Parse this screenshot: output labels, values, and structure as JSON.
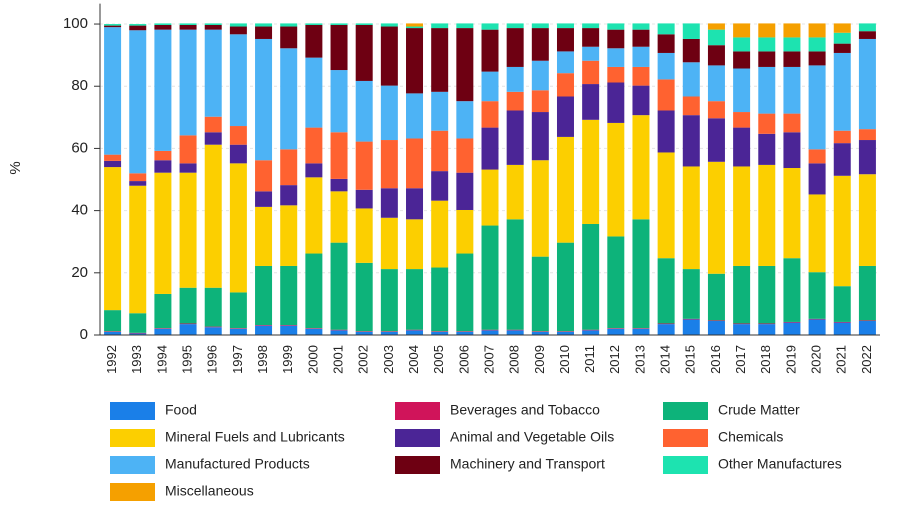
{
  "chart_data": {
    "type": "stacked_bar",
    "y_label": "%",
    "categories": [
      "1992",
      "1993",
      "1994",
      "1995",
      "1996",
      "1997",
      "1998",
      "1999",
      "2000",
      "2001",
      "2002",
      "2003",
      "2004",
      "2005",
      "2006",
      "2007",
      "2008",
      "2009",
      "2010",
      "2011",
      "2012",
      "2013",
      "2014",
      "2015",
      "2016",
      "2017",
      "2018",
      "2019",
      "2020",
      "2021",
      "2022"
    ],
    "ylim": [
      0,
      104
    ],
    "yticks": [
      0,
      20,
      40,
      60,
      80,
      100
    ],
    "grid": true,
    "series": [
      {
        "name": "Food",
        "color": "#1a7fe8",
        "values": [
          1,
          0.5,
          2,
          3.5,
          2.5,
          2,
          3,
          3,
          2,
          1.5,
          1,
          1,
          1.5,
          1,
          1,
          1.5,
          1.5,
          1,
          1,
          1.5,
          2,
          2,
          3.5,
          5,
          4.5,
          3.5,
          3.5,
          4,
          5,
          4,
          4.5
        ]
      },
      {
        "name": "Beverages and Tobacco",
        "color": "#d0145a",
        "values": [
          0.2,
          0.2,
          0.2,
          0.2,
          0.2,
          0.2,
          0.2,
          0.2,
          0.2,
          0.2,
          0.2,
          0.2,
          0.2,
          0.2,
          0.2,
          0.2,
          0.2,
          0.2,
          0.2,
          0.2,
          0.2,
          0.2,
          0.2,
          0.2,
          0.2,
          0.2,
          0.2,
          0.2,
          0.2,
          0.2,
          0.2
        ]
      },
      {
        "name": "Crude Matter",
        "color": "#0db37a",
        "values": [
          6.8,
          6.3,
          11,
          11.5,
          12.5,
          11.5,
          19,
          19,
          24,
          28,
          22,
          20,
          19.5,
          20.5,
          25,
          33.5,
          35.5,
          24,
          28.5,
          34,
          29.5,
          35,
          21,
          16,
          15,
          18.5,
          18.5,
          20.5,
          15,
          11.5,
          17.5
        ]
      },
      {
        "name": "Mineral Fuels and Lubricants",
        "color": "#fccf00",
        "values": [
          46,
          41,
          39,
          37,
          46,
          41.5,
          19,
          19.5,
          24.5,
          16.5,
          17.5,
          16.5,
          16,
          21.5,
          14,
          18,
          17.5,
          31,
          34,
          33.5,
          36.5,
          33.5,
          34,
          33,
          36,
          32,
          32.5,
          29,
          25,
          35.5,
          29.5
        ]
      },
      {
        "name": "Animal and Vegetable Oils",
        "color": "#4b2596",
        "values": [
          2,
          1.5,
          4,
          3,
          4,
          6,
          5,
          6.5,
          4.5,
          4,
          6,
          9.5,
          10,
          9.5,
          12,
          13.5,
          17.5,
          15.5,
          13,
          11.5,
          13,
          9.5,
          13.5,
          16.5,
          14,
          12.5,
          10,
          11.5,
          10,
          10.5,
          11
        ]
      },
      {
        "name": "Chemicals",
        "color": "#ff6230",
        "values": [
          2,
          2.5,
          3,
          9,
          5,
          6,
          10,
          11.5,
          11.5,
          15,
          15.5,
          15.5,
          16,
          13,
          11,
          8.5,
          6,
          7,
          7.5,
          7.5,
          5,
          6,
          10,
          6,
          5.5,
          5,
          6.5,
          6,
          4.5,
          4,
          3.5
        ]
      },
      {
        "name": "Manufactured Products",
        "color": "#4db3f5",
        "values": [
          41,
          46,
          39,
          34,
          28,
          29.5,
          39,
          32.5,
          22.5,
          20,
          19.5,
          17.5,
          14.5,
          12.5,
          12,
          9.5,
          8,
          9.5,
          7,
          4.5,
          6,
          6.5,
          8.5,
          11,
          11.5,
          14,
          15,
          15,
          27,
          25,
          29
        ]
      },
      {
        "name": "Machinery and Transport",
        "color": "#6e0012",
        "values": [
          0.5,
          1.5,
          1.5,
          1.5,
          1.5,
          2.5,
          4,
          7,
          10.5,
          14.5,
          18,
          19,
          21,
          20.5,
          23.5,
          13.5,
          12.5,
          10.5,
          7.5,
          6,
          6,
          5.5,
          6,
          7.5,
          6.5,
          5.5,
          5,
          5,
          4.5,
          3,
          2.5
        ]
      },
      {
        "name": "Other Manufactures",
        "color": "#1de3b0",
        "values": [
          0.5,
          0.5,
          0.5,
          0.5,
          0.5,
          1,
          1,
          1,
          0.5,
          0.5,
          0.5,
          1,
          0.5,
          1.5,
          1.5,
          2,
          1.5,
          1.5,
          1.5,
          1.5,
          2,
          2,
          3.5,
          5,
          5,
          4.5,
          4.5,
          4.5,
          4.5,
          3.5,
          2.5
        ]
      },
      {
        "name": "Miscellaneous",
        "color": "#f5a000",
        "values": [
          0,
          0,
          0,
          0,
          0,
          0,
          0,
          0,
          0,
          0,
          0,
          0,
          1,
          0,
          0,
          0,
          0,
          0,
          0,
          0,
          0,
          0,
          0,
          0,
          2,
          4.5,
          4.5,
          4.5,
          4.5,
          3,
          0
        ]
      }
    ]
  }
}
